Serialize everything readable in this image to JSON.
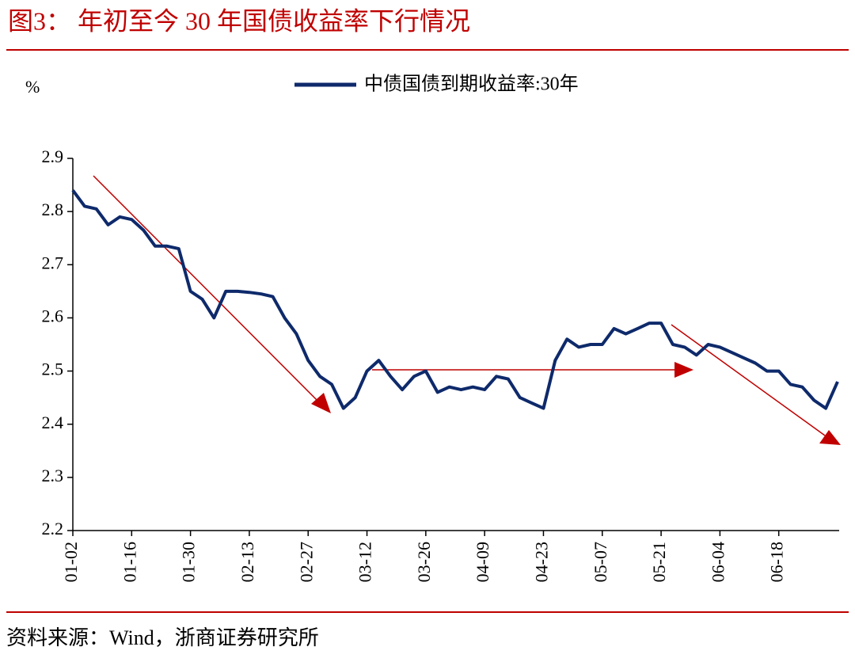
{
  "chart_data": {
    "type": "line",
    "title": "图3：  年初至今 30 年国债收益率下行情况",
    "ylabel": "%",
    "source": "资料来源：Wind，浙商证券研究所",
    "categories": [
      "01-02",
      null,
      null,
      null,
      null,
      "01-16",
      null,
      null,
      null,
      null,
      "01-30",
      null,
      null,
      null,
      null,
      "02-13",
      null,
      null,
      null,
      null,
      "02-27",
      null,
      null,
      null,
      null,
      "03-12",
      null,
      null,
      null,
      null,
      "03-26",
      null,
      null,
      null,
      null,
      "04-09",
      null,
      null,
      null,
      null,
      "04-23",
      null,
      null,
      null,
      null,
      "05-07",
      null,
      null,
      null,
      null,
      "05-21",
      null,
      null,
      null,
      null,
      "06-04",
      null,
      null,
      null,
      null,
      "06-18",
      null,
      null,
      null,
      null,
      null
    ],
    "series": [
      {
        "name": "中债国债到期收益率:30年",
        "color": "#0e2a6b",
        "values": [
          2.84,
          2.81,
          2.805,
          2.775,
          2.79,
          2.785,
          2.765,
          2.735,
          2.735,
          2.73,
          2.65,
          2.635,
          2.6,
          2.65,
          2.65,
          2.648,
          2.645,
          2.64,
          2.6,
          2.57,
          2.52,
          2.49,
          2.475,
          2.43,
          2.45,
          2.5,
          2.52,
          2.49,
          2.465,
          2.49,
          2.5,
          2.46,
          2.47,
          2.465,
          2.47,
          2.465,
          2.49,
          2.485,
          2.45,
          2.44,
          2.43,
          2.52,
          2.56,
          2.545,
          2.55,
          2.55,
          2.58,
          2.57,
          2.58,
          2.59,
          2.59,
          2.55,
          2.545,
          2.53,
          2.55,
          2.545,
          2.535,
          2.525,
          2.515,
          2.5,
          2.5,
          2.475,
          2.47,
          2.445,
          2.43,
          2.48
        ]
      }
    ],
    "ylim": [
      2.2,
      2.9
    ],
    "yticks": [
      2.2,
      2.3,
      2.4,
      2.5,
      2.6,
      2.7,
      2.8,
      2.9
    ],
    "legend": "top"
  }
}
